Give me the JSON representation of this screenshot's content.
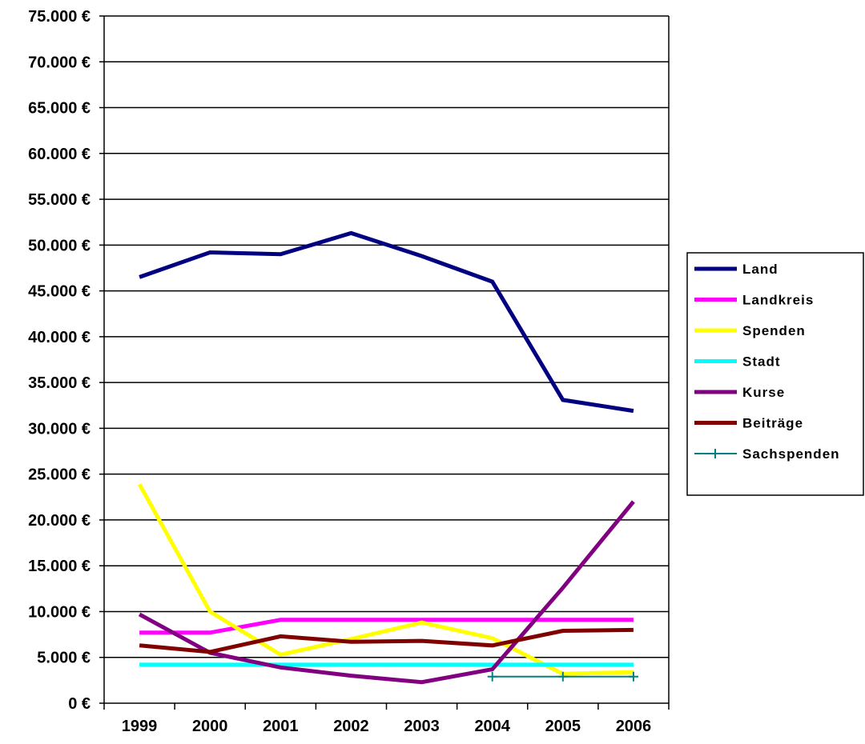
{
  "chart_data": {
    "type": "line",
    "categories": [
      "1999",
      "2000",
      "2001",
      "2002",
      "2003",
      "2004",
      "2005",
      "2006"
    ],
    "y_ticks": [
      "0 €",
      "5.000 €",
      "10.000 €",
      "15.000 €",
      "20.000 €",
      "25.000 €",
      "30.000 €",
      "35.000 €",
      "40.000 €",
      "45.000 €",
      "50.000 €",
      "55.000 €",
      "60.000 €",
      "65.000 €",
      "70.000 €",
      "75.000 €"
    ],
    "ylim": [
      0,
      75000
    ],
    "grid": true,
    "legend_position": "right",
    "series": [
      {
        "name": "Land",
        "color": "#000080",
        "marker": "none",
        "values": [
          46500,
          49200,
          49000,
          51300,
          48800,
          46000,
          33100,
          31900
        ]
      },
      {
        "name": "Landkreis",
        "color": "#ff00ff",
        "marker": "none",
        "values": [
          7700,
          7700,
          9100,
          9100,
          9100,
          9100,
          9100,
          9100
        ]
      },
      {
        "name": "Spenden",
        "color": "#ffff00",
        "marker": "none",
        "values": [
          23900,
          10000,
          5300,
          7000,
          8800,
          7100,
          3200,
          3400
        ]
      },
      {
        "name": "Stadt",
        "color": "#00ffff",
        "marker": "none",
        "values": [
          4200,
          4200,
          4200,
          4200,
          4200,
          4200,
          4200,
          4200
        ]
      },
      {
        "name": "Kurse",
        "color": "#800080",
        "marker": "none",
        "values": [
          9700,
          5500,
          3900,
          3000,
          2300,
          3700,
          12600,
          22000
        ]
      },
      {
        "name": "Beiträge",
        "color": "#800000",
        "marker": "none",
        "values": [
          6300,
          5600,
          7300,
          6700,
          6800,
          6300,
          7900,
          8000
        ]
      },
      {
        "name": "Sachspenden",
        "color": "#008080",
        "marker": "plus",
        "values": [
          null,
          null,
          null,
          null,
          null,
          2900,
          2900,
          2900
        ]
      }
    ]
  }
}
